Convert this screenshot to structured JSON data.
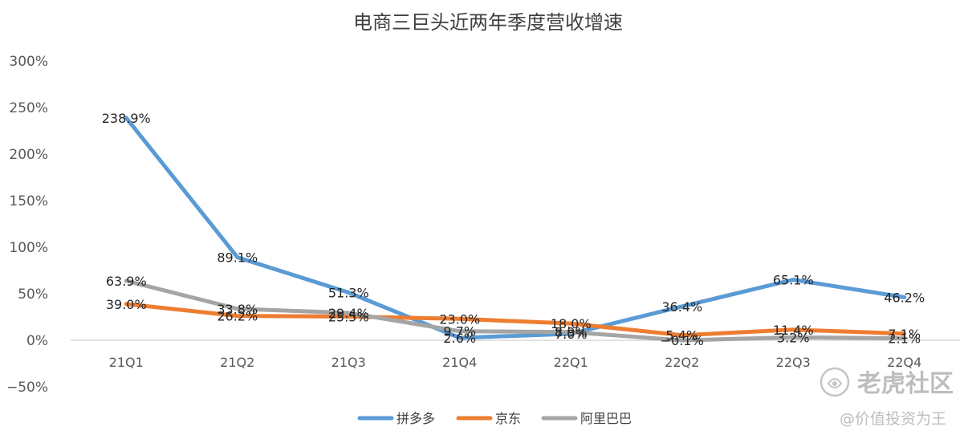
{
  "chart_data": {
    "type": "line",
    "title": "电商三巨头近两年季度营收增速",
    "categories": [
      "21Q1",
      "21Q2",
      "21Q3",
      "21Q4",
      "22Q1",
      "22Q2",
      "22Q3",
      "22Q4"
    ],
    "y_ticks": [
      "300%",
      "250%",
      "200%",
      "150%",
      "100%",
      "50%",
      "0%",
      "−50%"
    ],
    "ylim": [
      -50,
      300
    ],
    "grid": "horizontal",
    "legend_position": "bottom",
    "series": [
      {
        "name": "拼多多",
        "color": "#5b9bd5",
        "values": [
          238.9,
          89.1,
          51.3,
          2.6,
          7.0,
          36.4,
          65.1,
          46.2
        ],
        "labels": [
          "238.9%",
          "89.1%",
          "51.3%",
          "2.6%",
          "7.0%",
          "36.4%",
          "65.1%",
          "46.2%"
        ]
      },
      {
        "name": "京东",
        "color": "#ed7d31",
        "values": [
          39.0,
          26.2,
          25.5,
          23.0,
          18.0,
          5.4,
          11.4,
          7.1
        ],
        "labels": [
          "39.0%",
          "26.2%",
          "25.5%",
          "23.0%",
          "18.0%",
          "5.4%",
          "11.4%",
          "7.1%"
        ]
      },
      {
        "name": "阿里巴巴",
        "color": "#a5a5a5",
        "values": [
          63.9,
          33.8,
          29.4,
          9.7,
          8.9,
          -0.1,
          3.2,
          2.1
        ],
        "labels": [
          "63.9%",
          "33.8%",
          "29.4%",
          "9.7%",
          "8.9%",
          "−0.1%",
          "3.2%",
          "2.1%"
        ]
      }
    ]
  },
  "watermark": {
    "brand": "老虎社区",
    "author": "@价值投资为王"
  }
}
